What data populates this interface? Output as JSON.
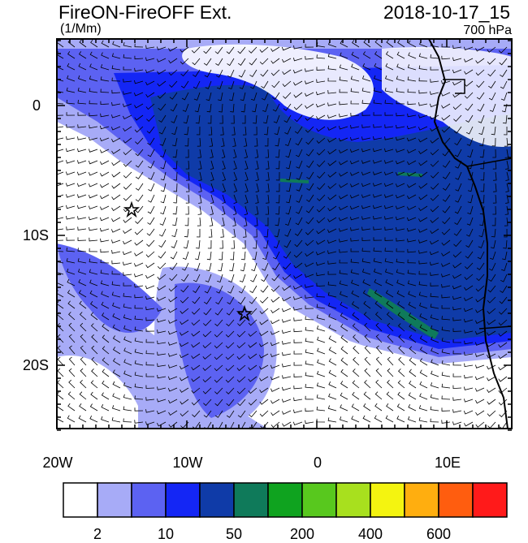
{
  "header": {
    "title": "FireON-FireOFF Ext.",
    "datetime": "2018-10-17_15",
    "units": "(1/Mm)",
    "level": "700 hPa"
  },
  "axes": {
    "lon_labels": [
      "20W",
      "10W",
      "0",
      "10E"
    ],
    "lat_labels": [
      "0",
      "10S",
      "20S"
    ]
  },
  "colorbar": {
    "colors": [
      "#ffffff",
      "#a7abf7",
      "#5c62f2",
      "#1426f5",
      "#0f3ba8",
      "#0f7a5a",
      "#0fa31f",
      "#58c81e",
      "#a8e01e",
      "#f4f410",
      "#ffae0f",
      "#ff5d0f",
      "#ff1a1a"
    ],
    "labels": [
      "2",
      "10",
      "50",
      "200",
      "400",
      "600"
    ]
  },
  "markers": [
    {
      "name": "star-marker-west",
      "lon": "14.4W",
      "lat": "8.0S"
    },
    {
      "name": "star-marker-south",
      "lon": "5.6W",
      "lat": "16.1S"
    }
  ]
}
